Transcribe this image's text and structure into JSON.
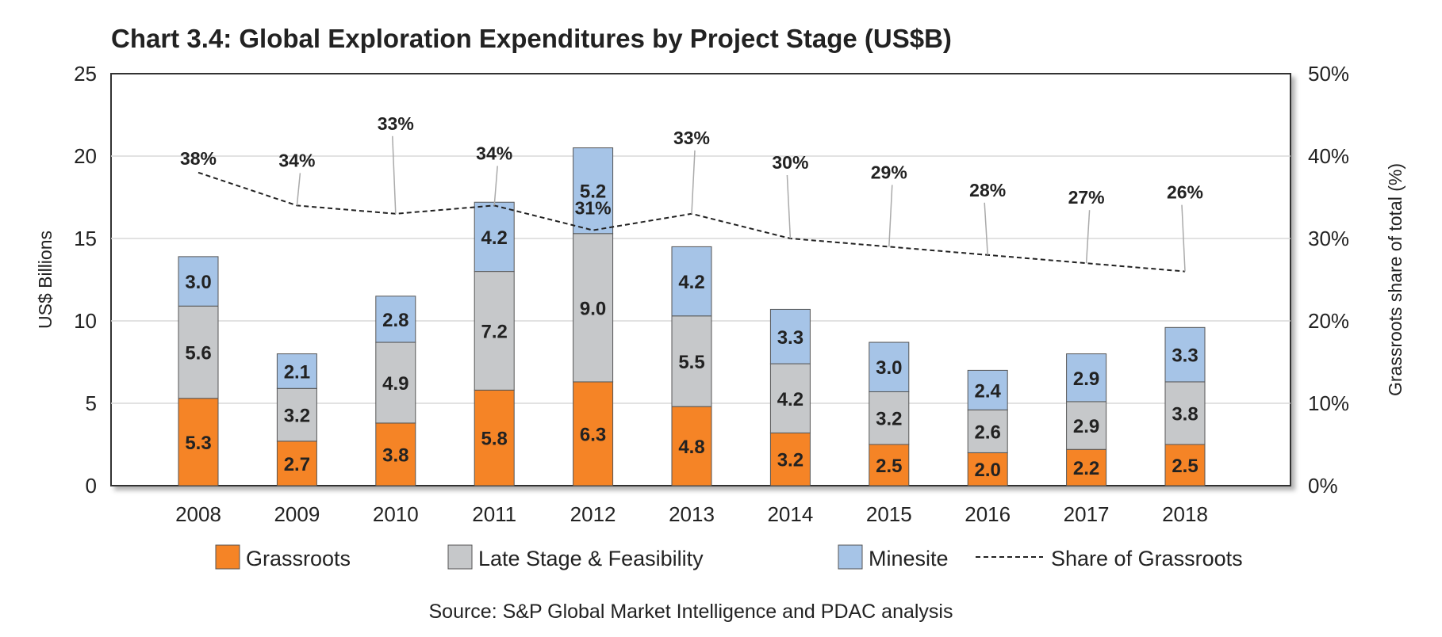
{
  "chart_data": {
    "type": "bar",
    "stacked": true,
    "title": "Chart 3.4: Global Exploration Expenditures by Project Stage (US$B)",
    "categories": [
      "2008",
      "2009",
      "2010",
      "2011",
      "2012",
      "2013",
      "2014",
      "2015",
      "2016",
      "2017",
      "2018"
    ],
    "series": [
      {
        "name": "Grassroots",
        "color": "#F58426",
        "values": [
          5.3,
          2.7,
          3.8,
          5.8,
          6.3,
          4.8,
          3.2,
          2.5,
          2.0,
          2.2,
          2.5
        ]
      },
      {
        "name": "Late Stage & Feasibility",
        "color": "#C6C8CA",
        "values": [
          5.6,
          3.2,
          4.9,
          7.2,
          9.0,
          5.5,
          4.2,
          3.2,
          2.6,
          2.9,
          3.8
        ]
      },
      {
        "name": "Minesite",
        "color": "#A6C4E7",
        "values": [
          3.0,
          2.1,
          2.8,
          4.2,
          5.2,
          4.2,
          3.3,
          3.0,
          2.4,
          2.9,
          3.3
        ]
      }
    ],
    "line_series": {
      "name": "Share of Grassroots",
      "axis": "right",
      "style": "dashed",
      "values": [
        38,
        34,
        33,
        34,
        31,
        33,
        30,
        29,
        28,
        27,
        26
      ],
      "labels": [
        "38%",
        "34%",
        "33%",
        "34%",
        "31%",
        "33%",
        "30%",
        "29%",
        "28%",
        "27%",
        "26%"
      ]
    },
    "ylabel": "US$ Billions",
    "y2label": "Grassroots share of total (%)",
    "ylim": [
      0,
      25
    ],
    "yticks": [
      "0",
      "5",
      "10",
      "15",
      "20",
      "25"
    ],
    "y2lim": [
      0,
      50
    ],
    "y2ticks": [
      "0%",
      "10%",
      "20%",
      "30%",
      "40%",
      "50%"
    ],
    "grid": true,
    "legend": "bottom",
    "source": "Source: S&P Global Market Intelligence and PDAC analysis"
  }
}
